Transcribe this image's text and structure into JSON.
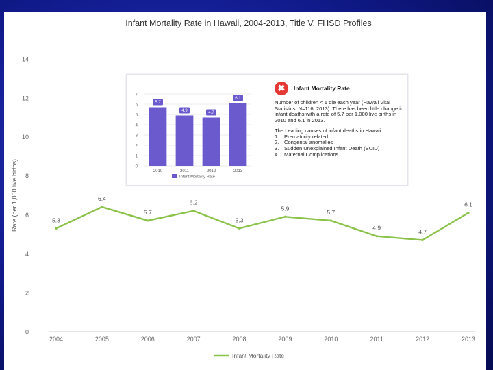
{
  "chart_data": [
    {
      "type": "line",
      "title": "Infant Mortality Rate in Hawaii, 2004-2013, Title V, FHSD Profiles",
      "ylabel": "Rate (per 1,000 live births)",
      "xlabel": "",
      "categories": [
        "2004",
        "2005",
        "2006",
        "2007",
        "2008",
        "2009",
        "2010",
        "2011",
        "2012",
        "2013"
      ],
      "series": [
        {
          "name": "Infant Mortality Rate",
          "values": [
            5.3,
            6.4,
            5.7,
            6.2,
            5.3,
            5.9,
            5.7,
            4.9,
            4.7,
            6.1
          ],
          "labels": [
            "5.3",
            "6.4",
            "5.7",
            "6.2",
            "5.3",
            "5.9",
            "5.7",
            "4.9",
            "4.7",
            "6.1"
          ]
        }
      ],
      "ylim": [
        0,
        14
      ],
      "yticks": [
        "0",
        "2",
        "4",
        "6",
        "8",
        "10",
        "12",
        "14"
      ],
      "grid": false,
      "legend": "bottom",
      "line_color": "#8bc34a"
    },
    {
      "type": "bar",
      "title": "",
      "categories": [
        "2010",
        "2011",
        "2012",
        "2013"
      ],
      "series": [
        {
          "name": "Infant Mortality Rate",
          "values": [
            5.7,
            4.9,
            4.7,
            6.1
          ],
          "labels": [
            "5.7",
            "4.9",
            "4.7",
            "6.1"
          ]
        }
      ],
      "ylim": [
        0,
        7
      ],
      "yticks": [
        "0",
        "1",
        "2",
        "3",
        "4",
        "5",
        "6",
        "7"
      ],
      "grid": true,
      "legend": "bottom",
      "bar_color": "#6a5acd"
    }
  ],
  "infobox": {
    "icon": "x-icon",
    "icon_color": "#e53935",
    "title": "Infant Mortality Rate",
    "paragraph": "Number of children < 1 die each year (Hawaii Vital Statistics, N=116, 2013). There has been little change in infant deaths with a rate of 5.7 per 1,000 live births in 2010 and 6.1 in 2013.",
    "causes_title": "The Leading causes of infant deaths in Hawaii:",
    "causes": [
      {
        "num": "1.",
        "text": "Prematurity related"
      },
      {
        "num": "2.",
        "text": "Congental anomalies"
      },
      {
        "num": "3.",
        "text": "Sudden Unexplained Infant Death (SUID)"
      },
      {
        "num": "4.",
        "text": "Maternal Complications"
      }
    ]
  }
}
